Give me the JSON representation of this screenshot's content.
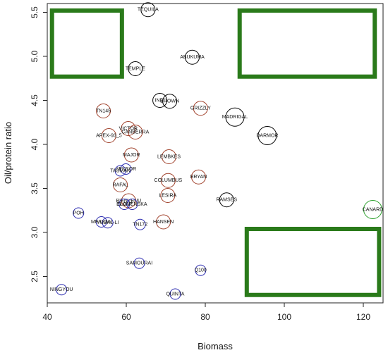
{
  "chart_data": {
    "type": "scatter",
    "xlabel": "Biomass",
    "ylabel": "Oil/protein ratio",
    "xlim": [
      40,
      125
    ],
    "ylim": [
      2.2,
      5.6
    ],
    "x_ticks": [
      "40",
      "60",
      "80",
      "100",
      "120"
    ],
    "y_ticks": [
      "2.5",
      "3.0",
      "3.5",
      "4.0",
      "4.5",
      "5.0",
      "5.5"
    ],
    "grid": false,
    "colors": {
      "black": "#000000",
      "brown": "#a0402a",
      "blue": "#2b2bb0",
      "green": "#2ca02c",
      "box": "#2a7a1a"
    },
    "points": [
      {
        "label": "TEQUILA",
        "x": 65.5,
        "y": 5.53,
        "color": "black"
      },
      {
        "label": "ABUKUMA",
        "x": 76.7,
        "y": 4.99,
        "color": "black"
      },
      {
        "label": "TEMPLE",
        "x": 62.3,
        "y": 4.86,
        "color": "black"
      },
      {
        "label": "INDI",
        "x": 68.5,
        "y": 4.5,
        "color": "black"
      },
      {
        "label": "BROWN",
        "x": 71.0,
        "y": 4.49,
        "color": "black"
      },
      {
        "label": "GRIZZLY",
        "x": 78.8,
        "y": 4.41,
        "color": "brown"
      },
      {
        "label": "MADRIGAL",
        "x": 87.5,
        "y": 4.31,
        "color": "black"
      },
      {
        "label": "TN145",
        "x": 54.2,
        "y": 4.38,
        "color": "brown"
      },
      {
        "label": "VICTOR",
        "x": 60.5,
        "y": 4.18,
        "color": "brown"
      },
      {
        "label": "CANBERRA",
        "x": 62.3,
        "y": 4.14,
        "color": "brown"
      },
      {
        "label": "APEX-93_5",
        "x": 55.6,
        "y": 4.1,
        "color": "brown"
      },
      {
        "label": "DARMOR",
        "x": 95.7,
        "y": 4.1,
        "color": "black"
      },
      {
        "label": "MAJOR",
        "x": 61.3,
        "y": 3.88,
        "color": "brown"
      },
      {
        "label": "LEMBKES",
        "x": 70.8,
        "y": 3.86,
        "color": "brown"
      },
      {
        "label": "SENSOR",
        "x": 59.9,
        "y": 3.72,
        "color": "blue"
      },
      {
        "label": "TASMAN",
        "x": 58.5,
        "y": 3.7,
        "color": "blue"
      },
      {
        "label": "BRYAN",
        "x": 78.3,
        "y": 3.63,
        "color": "brown"
      },
      {
        "label": "COLUMBUS",
        "x": 70.6,
        "y": 3.59,
        "color": "brown"
      },
      {
        "label": "RAFAL",
        "x": 58.5,
        "y": 3.54,
        "color": "brown"
      },
      {
        "label": "LESIRA",
        "x": 70.5,
        "y": 3.42,
        "color": "brown"
      },
      {
        "label": "RAMSES",
        "x": 85.4,
        "y": 3.37,
        "color": "black"
      },
      {
        "label": "BIENVENU",
        "x": 60.6,
        "y": 3.36,
        "color": "brown"
      },
      {
        "label": "SLOVENSKA",
        "x": 61.5,
        "y": 3.32,
        "color": "blue"
      },
      {
        "label": "ELIXIR",
        "x": 59.5,
        "y": 3.32,
        "color": "blue"
      },
      {
        "label": "CANARD",
        "x": 122.4,
        "y": 3.26,
        "color": "green"
      },
      {
        "label": "POH",
        "x": 47.9,
        "y": 3.22,
        "color": "blue"
      },
      {
        "label": "MESSAN",
        "x": 53.7,
        "y": 3.12,
        "color": "blue"
      },
      {
        "label": "YUDAL-LI",
        "x": 55.3,
        "y": 3.11,
        "color": "blue"
      },
      {
        "label": "HANSEN",
        "x": 69.4,
        "y": 3.12,
        "color": "brown"
      },
      {
        "label": "TN172",
        "x": 63.5,
        "y": 3.09,
        "color": "blue"
      },
      {
        "label": "SAMOURAI",
        "x": 63.3,
        "y": 2.65,
        "color": "blue"
      },
      {
        "label": "Q100",
        "x": 78.8,
        "y": 2.57,
        "color": "blue"
      },
      {
        "label": "NINGYOU",
        "x": 43.6,
        "y": 2.35,
        "color": "blue"
      },
      {
        "label": "QUINTA",
        "x": 72.4,
        "y": 2.3,
        "color": "blue"
      }
    ],
    "highlight_boxes": [
      {
        "x0": 41.2,
        "x1": 58.9,
        "y0": 4.77,
        "y1": 5.52
      },
      {
        "x0": 88.7,
        "x1": 122.9,
        "y0": 4.77,
        "y1": 5.52
      },
      {
        "x0": 90.5,
        "x1": 124.0,
        "y0": 2.29,
        "y1": 3.04
      }
    ]
  }
}
